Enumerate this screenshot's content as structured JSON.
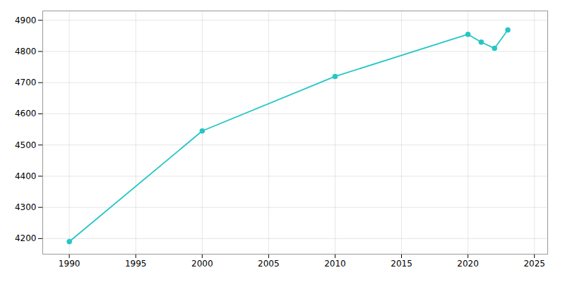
{
  "chart_data": {
    "type": "line",
    "x": [
      1990,
      2000,
      2010,
      2020,
      2021,
      2022,
      2023
    ],
    "values": [
      4190,
      4545,
      4720,
      4855,
      4830,
      4810,
      4869
    ],
    "color": "#26C6C6",
    "marker": "circle",
    "xlim": [
      1988,
      2026
    ],
    "ylim": [
      4150,
      4930
    ],
    "xticks": [
      1990,
      1995,
      2000,
      2005,
      2010,
      2015,
      2020,
      2025
    ],
    "yticks": [
      4200,
      4300,
      4400,
      4500,
      4600,
      4700,
      4800,
      4900
    ],
    "grid": true
  }
}
